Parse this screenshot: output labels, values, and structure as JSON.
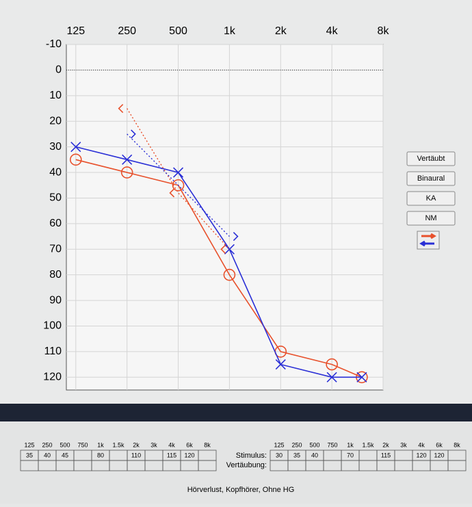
{
  "chart_data": {
    "type": "line",
    "xlim": [
      110,
      8000
    ],
    "x_scale": "log",
    "xticks": [
      125,
      250,
      500,
      {
        "value": 1000,
        "label": "1k"
      },
      {
        "value": 2000,
        "label": "2k"
      },
      {
        "value": 4000,
        "label": "4k"
      },
      {
        "value": 8000,
        "label": "8k"
      }
    ],
    "ylim": [
      -10,
      125
    ],
    "y_inverted": true,
    "yticks": [
      -10,
      0,
      10,
      20,
      30,
      40,
      50,
      60,
      70,
      80,
      90,
      100,
      110,
      120
    ],
    "grid": true,
    "reference_line": 0,
    "series": [
      {
        "color": "#e8512c",
        "marker": "o",
        "line": "solid",
        "x": [
          125,
          250,
          500,
          1000,
          2000,
          4000,
          6000
        ],
        "values": [
          35,
          40,
          45,
          80,
          110,
          115,
          120
        ]
      },
      {
        "color": "#2a2fd6",
        "marker": "x",
        "line": "solid",
        "x": [
          125,
          250,
          500,
          1000,
          2000,
          4000,
          6000
        ],
        "values": [
          30,
          35,
          40,
          70,
          115,
          120,
          120
        ]
      },
      {
        "color": "#e8512c",
        "marker": "<",
        "line": "dotted",
        "x": [
          250,
          500,
          1000
        ],
        "values": [
          15,
          48,
          70
        ]
      },
      {
        "color": "#2a2fd6",
        "marker": ">",
        "line": "dotted",
        "x": [
          250,
          1000
        ],
        "values": [
          25,
          65
        ]
      }
    ]
  },
  "buttons": [
    "Vertäubt",
    "Binaural",
    "KA",
    "NM"
  ],
  "tables": [
    {
      "headers": [
        "125",
        "250",
        "500",
        "750",
        "1k",
        "1.5k",
        "2k",
        "3k",
        "4k",
        "6k",
        "8k"
      ],
      "rows": [
        [
          35,
          40,
          45,
          null,
          80,
          null,
          110,
          null,
          115,
          120,
          null
        ],
        [
          null,
          null,
          null,
          null,
          null,
          null,
          null,
          null,
          null,
          null,
          null
        ]
      ]
    },
    {
      "headers": [
        "125",
        "250",
        "500",
        "750",
        "1k",
        "1.5k",
        "2k",
        "3k",
        "4k",
        "6k",
        "8k"
      ],
      "rows": [
        [
          30,
          35,
          40,
          null,
          70,
          null,
          115,
          null,
          120,
          120,
          null
        ],
        [
          null,
          null,
          null,
          null,
          null,
          null,
          null,
          null,
          null,
          null,
          null
        ]
      ]
    }
  ],
  "row_labels": [
    "Stimulus:",
    "Vertäubung:"
  ],
  "status": "Hörverlust, Kopfhörer, Ohne HG"
}
